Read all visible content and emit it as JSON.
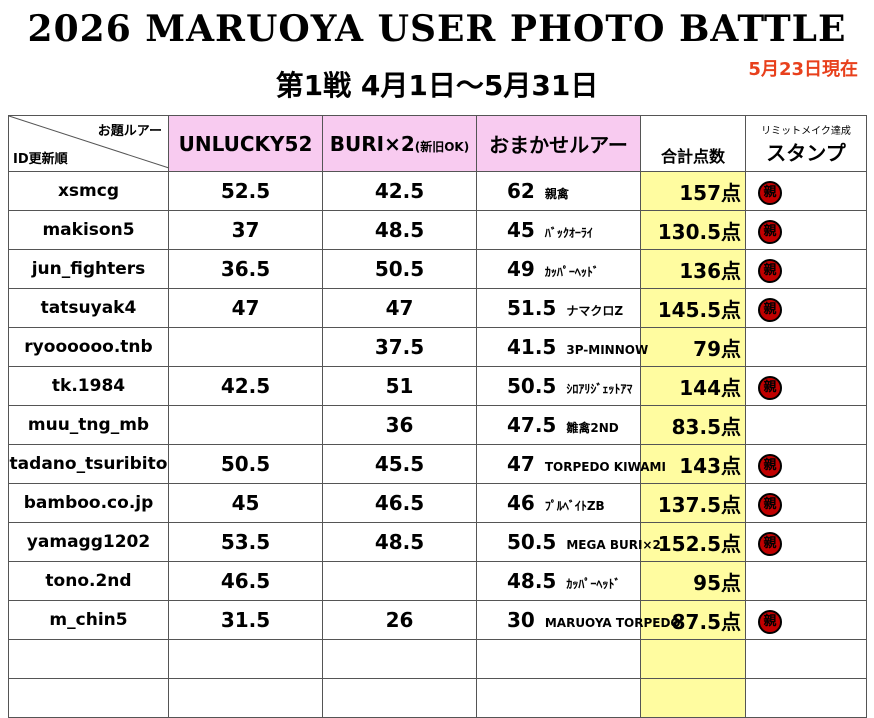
{
  "header": {
    "title": "2026 MARUOYA USER PHOTO BATTLE",
    "subtitle": "第1戦 4月1日～5月31日",
    "note": "5月23日現在"
  },
  "table": {
    "corner_top": "お題ルアー",
    "corner_bottom": "ID更新順",
    "columns": [
      "UNLUCKY52",
      "BURI×2",
      "おまかせルアー",
      "合計点数",
      "スタンプ"
    ],
    "column_note_buri": "(新旧OK)",
    "column_note_stamp": "リミットメイク達成",
    "rows": [
      [
        "xsmcg",
        "52.5",
        "42.5",
        "62",
        "親禽",
        "157点",
        "親"
      ],
      [
        "makison5",
        "37",
        "48.5",
        "45",
        "ﾊﾞｯｸｵｰﾗｲ",
        "130.5点",
        "親"
      ],
      [
        "jun_fighters",
        "36.5",
        "50.5",
        "49",
        "ｶｯﾊﾟｰﾍｯﾄﾞ",
        "136点",
        "親"
      ],
      [
        "tatsuyak4",
        "47",
        "47",
        "51.5",
        "ナマクロZ",
        "145.5点",
        "親"
      ],
      [
        "ryoooooo.tnb",
        null,
        "37.5",
        "41.5",
        "3P-MINNOW",
        "79点",
        null
      ],
      [
        "tk.1984",
        "42.5",
        "51",
        "50.5",
        "ｼﾛｱﾘｼﾞｪｯﾄｱﾏ",
        "144点",
        "親"
      ],
      [
        "muu_tng_mb",
        null,
        "36",
        "47.5",
        "雛禽2ND",
        "83.5点",
        null
      ],
      [
        "tadano_tsuribito",
        "50.5",
        "45.5",
        "47",
        "TORPEDO KIWAMI",
        "143点",
        "親"
      ],
      [
        "bamboo.co.jp",
        "45",
        "46.5",
        "46",
        "ﾌﾟﾙﾍﾞｲﾄZB",
        "137.5点",
        "親"
      ],
      [
        "yamagg1202",
        "53.5",
        "48.5",
        "50.5",
        "MEGA BURI×2",
        "152.5点",
        "親"
      ],
      [
        "tono.2nd",
        "46.5",
        null,
        "48.5",
        "ｶｯﾊﾟｰﾍｯﾄﾞ",
        "95点",
        null
      ],
      [
        "m_chin5",
        "31.5",
        "26",
        "30",
        "MARUOYA TORPEDO",
        "87.5点",
        "親"
      ]
    ]
  }
}
